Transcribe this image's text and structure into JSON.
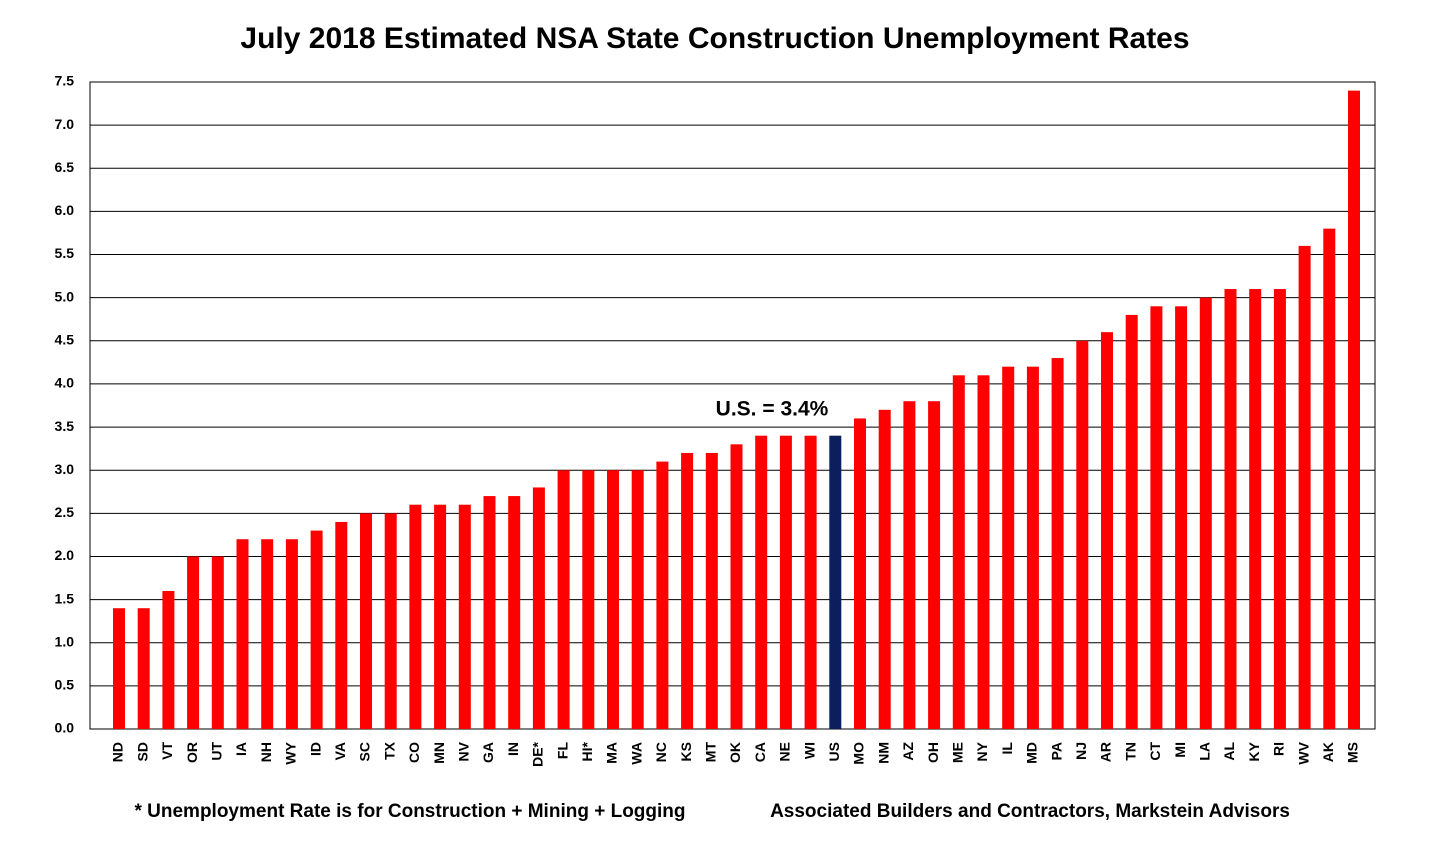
{
  "chart_data": {
    "type": "bar",
    "title": "July 2018 Estimated NSA State Construction Unemployment Rates",
    "categories": [
      "ND",
      "SD",
      "VT",
      "OR",
      "UT",
      "IA",
      "NH",
      "WY",
      "ID",
      "VA",
      "SC",
      "TX",
      "CO",
      "MN",
      "NV",
      "GA",
      "IN",
      "DE*",
      "FL",
      "HI*",
      "MA",
      "WA",
      "NC",
      "KS",
      "MT",
      "OK",
      "CA",
      "NE",
      "WI",
      "US",
      "MO",
      "NM",
      "AZ",
      "OH",
      "ME",
      "NY",
      "IL",
      "MD",
      "PA",
      "NJ",
      "AR",
      "TN",
      "CT",
      "MI",
      "LA",
      "AL",
      "KY",
      "RI",
      "WV",
      "AK",
      "MS"
    ],
    "values": [
      1.4,
      1.4,
      1.6,
      2.0,
      2.0,
      2.2,
      2.2,
      2.2,
      2.3,
      2.4,
      2.5,
      2.5,
      2.6,
      2.6,
      2.6,
      2.7,
      2.7,
      2.8,
      3.0,
      3.0,
      3.0,
      3.0,
      3.1,
      3.2,
      3.2,
      3.3,
      3.4,
      3.4,
      3.4,
      3.4,
      3.6,
      3.7,
      3.8,
      3.8,
      4.1,
      4.1,
      4.2,
      4.2,
      4.3,
      4.5,
      4.6,
      4.8,
      4.9,
      4.9,
      5.0,
      5.1,
      5.1,
      5.1,
      5.6,
      5.8,
      7.4
    ],
    "colors": [
      "#ff0000",
      "#ff0000",
      "#ff0000",
      "#ff0000",
      "#ff0000",
      "#ff0000",
      "#ff0000",
      "#ff0000",
      "#ff0000",
      "#ff0000",
      "#ff0000",
      "#ff0000",
      "#ff0000",
      "#ff0000",
      "#ff0000",
      "#ff0000",
      "#ff0000",
      "#ff0000",
      "#ff0000",
      "#ff0000",
      "#ff0000",
      "#ff0000",
      "#ff0000",
      "#ff0000",
      "#ff0000",
      "#ff0000",
      "#ff0000",
      "#ff0000",
      "#ff0000",
      "#0a1f5c",
      "#ff0000",
      "#ff0000",
      "#ff0000",
      "#ff0000",
      "#ff0000",
      "#ff0000",
      "#ff0000",
      "#ff0000",
      "#ff0000",
      "#ff0000",
      "#ff0000",
      "#ff0000",
      "#ff0000",
      "#ff0000",
      "#ff0000",
      "#ff0000",
      "#ff0000",
      "#ff0000",
      "#ff0000",
      "#ff0000",
      "#ff0000"
    ],
    "ylim": [
      0,
      7.5
    ],
    "yticks": [
      {
        "value": 0,
        "label": "0.0"
      },
      0.5,
      {
        "value": 1,
        "label": "1.0"
      },
      1.5,
      {
        "value": 2,
        "label": "2.0"
      },
      2.5,
      {
        "value": 3,
        "label": "3.0"
      },
      3.5,
      {
        "value": 4,
        "label": "4.0"
      },
      4.5,
      {
        "value": 5,
        "label": "5.0"
      },
      5.5,
      {
        "value": 6,
        "label": "6.0"
      },
      6.5,
      {
        "value": 7,
        "label": "7.0"
      },
      7.5
    ],
    "grid": true,
    "annotation": "U.S. = 3.4%",
    "footnote": "* Unemployment Rate is for Construction + Mining + Logging",
    "source": "Associated Builders and Contractors, Markstein Advisors"
  }
}
